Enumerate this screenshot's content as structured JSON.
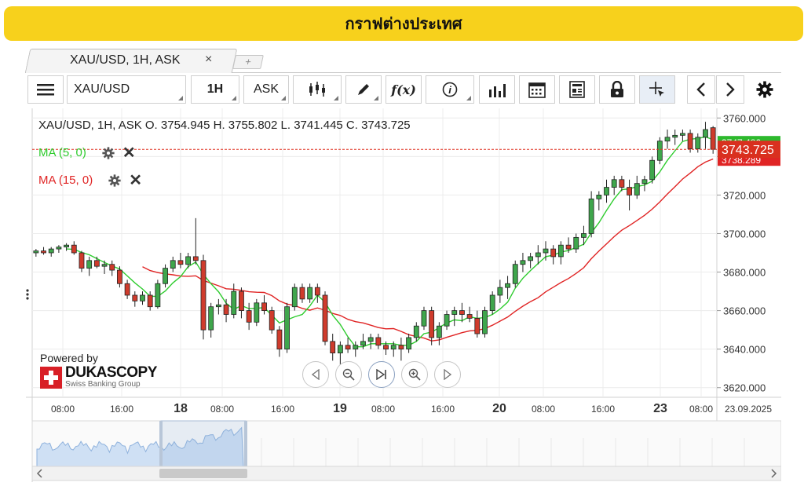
{
  "banner": {
    "title": "กราฟต่างประเทศ",
    "color": "#f7d11c"
  },
  "tab": {
    "label": "XAU/USD, 1H, ASK",
    "close": "×",
    "add": "+"
  },
  "toolbar": {
    "menu_icon": "hamburger-menu-icon",
    "instrument": "XAU/USD",
    "period": "1H",
    "side": "ASK",
    "chart_type_icon": "candlestick-icon",
    "draw_icon": "pencil-icon",
    "indicator_label": "f(x)",
    "info_icon": "info-icon",
    "bars_icon": "volume-bars-icon",
    "calendar_icon": "calendar-icon",
    "news_icon": "news-icon",
    "lock_icon": "lock-icon",
    "crosshair_icon": "crosshair-icon",
    "prev_icon": "chevron-left-icon",
    "next_icon": "chevron-right-icon",
    "settings_icon": "gear-icon"
  },
  "legend": {
    "ohlc": "XAU/USD, 1H, ASK    O. 3754.945  H. 3755.802  L. 3741.445  C. 3743.725",
    "ma_fast": "MA (5, 0)",
    "ma_slow": "MA (15, 0)",
    "ma_fast_color": "#2ecc2e",
    "ma_slow_color": "#e02424"
  },
  "branding": {
    "powered_by": "Powered by",
    "company": "DUKASCOPY",
    "tagline": "Swiss Banking Group"
  },
  "price_labels": {
    "last": "3743.725",
    "ma_fast": "3747.486",
    "ma_slow": "3738.289"
  },
  "chart_data": {
    "type": "candlestick",
    "title": "XAU/USD, 1H, ASK",
    "ylim": [
      3615,
      3765
    ],
    "y_ticks": [
      "3760.000",
      "3740.000",
      "3720.000",
      "3700.000",
      "3680.000",
      "3660.000",
      "3640.000",
      "3620.000"
    ],
    "x_ticks": [
      "08:00",
      "16:00",
      "18",
      "08:00",
      "16:00",
      "19",
      "08:00",
      "16:00",
      "20",
      "08:00",
      "16:00",
      "23",
      "08:00",
      "23.09.2025"
    ],
    "last_price": 3743.725,
    "candles": [
      [
        3690,
        3692,
        3688,
        3691
      ],
      [
        3691,
        3693,
        3689,
        3690
      ],
      [
        3690,
        3693,
        3688,
        3692
      ],
      [
        3692,
        3694,
        3690,
        3693
      ],
      [
        3693,
        3695,
        3691,
        3694
      ],
      [
        3694,
        3696,
        3689,
        3690
      ],
      [
        3690,
        3691,
        3680,
        3682
      ],
      [
        3682,
        3688,
        3678,
        3686
      ],
      [
        3686,
        3688,
        3682,
        3683
      ],
      [
        3683,
        3686,
        3679,
        3684
      ],
      [
        3684,
        3686,
        3678,
        3681
      ],
      [
        3681,
        3683,
        3672,
        3674
      ],
      [
        3674,
        3676,
        3666,
        3668
      ],
      [
        3668,
        3670,
        3662,
        3665
      ],
      [
        3665,
        3670,
        3663,
        3668
      ],
      [
        3668,
        3670,
        3660,
        3662
      ],
      [
        3662,
        3676,
        3661,
        3674
      ],
      [
        3674,
        3684,
        3672,
        3682
      ],
      [
        3682,
        3688,
        3680,
        3686
      ],
      [
        3686,
        3690,
        3682,
        3684
      ],
      [
        3684,
        3690,
        3682,
        3688
      ],
      [
        3688,
        3708,
        3684,
        3686
      ],
      [
        3686,
        3689,
        3645,
        3650
      ],
      [
        3650,
        3664,
        3646,
        3662
      ],
      [
        3662,
        3666,
        3658,
        3663
      ],
      [
        3663,
        3666,
        3654,
        3658
      ],
      [
        3658,
        3674,
        3656,
        3670
      ],
      [
        3670,
        3672,
        3656,
        3660
      ],
      [
        3660,
        3664,
        3650,
        3654
      ],
      [
        3654,
        3666,
        3652,
        3664
      ],
      [
        3664,
        3668,
        3658,
        3660
      ],
      [
        3660,
        3662,
        3648,
        3650
      ],
      [
        3650,
        3652,
        3636,
        3640
      ],
      [
        3640,
        3664,
        3638,
        3662
      ],
      [
        3662,
        3674,
        3660,
        3672
      ],
      [
        3672,
        3674,
        3664,
        3666
      ],
      [
        3666,
        3674,
        3664,
        3672
      ],
      [
        3672,
        3674,
        3664,
        3668
      ],
      [
        3668,
        3670,
        3642,
        3644
      ],
      [
        3644,
        3648,
        3634,
        3638
      ],
      [
        3638,
        3644,
        3632,
        3642
      ],
      [
        3642,
        3646,
        3638,
        3640
      ],
      [
        3640,
        3644,
        3636,
        3642
      ],
      [
        3642,
        3648,
        3640,
        3644
      ],
      [
        3644,
        3648,
        3640,
        3646
      ],
      [
        3646,
        3648,
        3640,
        3642
      ],
      [
        3642,
        3644,
        3637,
        3640
      ],
      [
        3640,
        3644,
        3636,
        3642
      ],
      [
        3642,
        3646,
        3634,
        3640
      ],
      [
        3640,
        3648,
        3638,
        3646
      ],
      [
        3646,
        3654,
        3644,
        3652
      ],
      [
        3652,
        3662,
        3650,
        3660
      ],
      [
        3660,
        3662,
        3642,
        3646
      ],
      [
        3646,
        3654,
        3642,
        3652
      ],
      [
        3652,
        3660,
        3650,
        3658
      ],
      [
        3658,
        3662,
        3652,
        3660
      ],
      [
        3660,
        3664,
        3654,
        3658
      ],
      [
        3658,
        3662,
        3654,
        3656
      ],
      [
        3656,
        3660,
        3646,
        3648
      ],
      [
        3648,
        3662,
        3646,
        3660
      ],
      [
        3660,
        3670,
        3658,
        3668
      ],
      [
        3668,
        3676,
        3664,
        3672
      ],
      [
        3672,
        3678,
        3666,
        3674
      ],
      [
        3674,
        3686,
        3672,
        3684
      ],
      [
        3684,
        3690,
        3680,
        3686
      ],
      [
        3686,
        3690,
        3682,
        3688
      ],
      [
        3688,
        3694,
        3684,
        3690
      ],
      [
        3690,
        3696,
        3686,
        3692
      ],
      [
        3692,
        3694,
        3684,
        3688
      ],
      [
        3688,
        3696,
        3684,
        3694
      ],
      [
        3694,
        3698,
        3690,
        3692
      ],
      [
        3692,
        3700,
        3690,
        3698
      ],
      [
        3698,
        3704,
        3694,
        3700
      ],
      [
        3700,
        3722,
        3698,
        3718
      ],
      [
        3718,
        3722,
        3712,
        3720
      ],
      [
        3720,
        3728,
        3716,
        3724
      ],
      [
        3724,
        3730,
        3720,
        3728
      ],
      [
        3728,
        3730,
        3722,
        3724
      ],
      [
        3724,
        3728,
        3712,
        3720
      ],
      [
        3720,
        3730,
        3718,
        3726
      ],
      [
        3726,
        3730,
        3722,
        3728
      ],
      [
        3728,
        3740,
        3726,
        3738
      ],
      [
        3738,
        3750,
        3736,
        3748
      ],
      [
        3748,
        3754,
        3744,
        3750
      ],
      [
        3750,
        3754,
        3746,
        3751
      ],
      [
        3751,
        3754,
        3748,
        3752
      ],
      [
        3752,
        3754,
        3742,
        3744
      ],
      [
        3744,
        3752,
        3742,
        3750
      ],
      [
        3750,
        3758,
        3744,
        3754
      ],
      [
        3754.945,
        3755.802,
        3741.445,
        3743.725
      ]
    ]
  }
}
